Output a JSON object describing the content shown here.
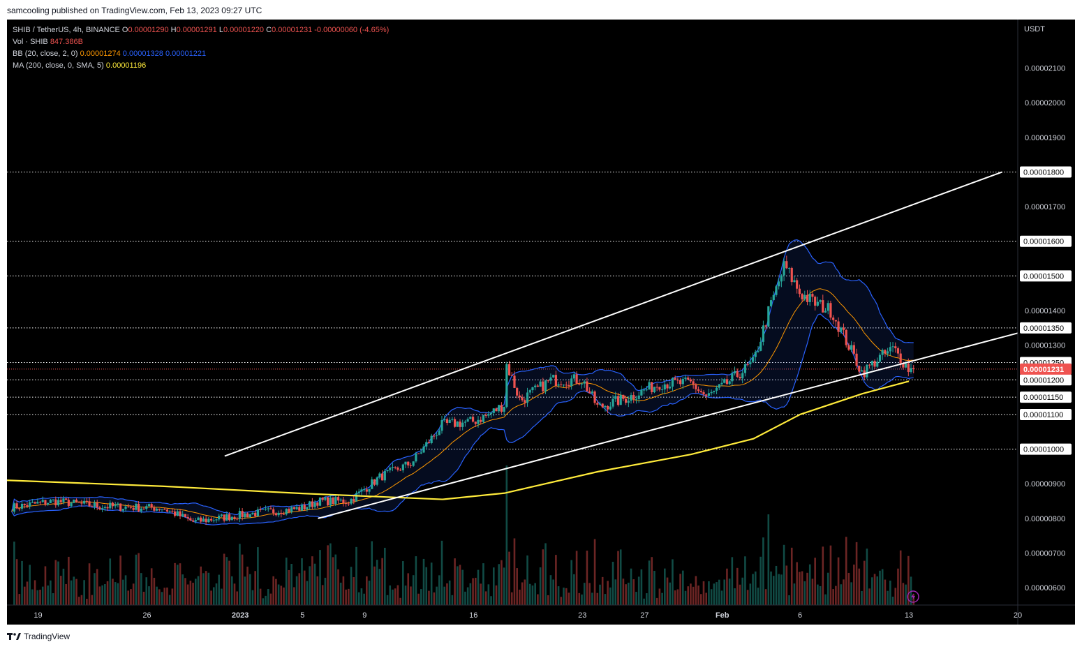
{
  "header": {
    "text": "samcooling published on TradingView.com, Feb 13, 2023 09:27 UTC"
  },
  "legend": {
    "symbol": "SHIB / TetherUS, 4h, BINANCE",
    "o_label": "O",
    "o": "0.00001290",
    "h_label": "H",
    "h": "0.00001291",
    "l_label": "L",
    "l": "0.00001220",
    "c_label": "C",
    "c": "0.00001231",
    "change": "-0.00000060 (-4.65%)",
    "vol_label": "Vol · SHIB",
    "vol": "847.386B",
    "bb_label": "BB (20, close, 2, 0)",
    "bb_basis": "0.00001274",
    "bb_upper": "0.00001328",
    "bb_lower": "0.00001221",
    "ma_label": "MA (200, close, 0, SMA, 5)",
    "ma": "0.00001196"
  },
  "footer": {
    "brand": "TradingView"
  },
  "colors": {
    "background": "#000000",
    "up": "#26a69a",
    "down": "#ef5350",
    "bb_basis": "#ff9800",
    "bb_band": "#2962ff",
    "ma": "#ffeb3b",
    "trendline": "#ffffff",
    "last_price": "#ef5350"
  },
  "chart_data": {
    "type": "candlestick",
    "y_unit": "USDT",
    "ylim": [
      5.5e-06,
      2.24e-05
    ],
    "y_ticks": [
      "0.00002100",
      "0.00002000",
      "0.00001900",
      "0.00001800",
      "0.00001700",
      "0.00001600",
      "0.00001500",
      "0.00001400",
      "0.00001350",
      "0.00001300",
      "0.00001250",
      "0.00001200",
      "0.00001150",
      "0.00001100",
      "0.00001000",
      "0.00000900",
      "0.00000800",
      "0.00000700",
      "0.00000600"
    ],
    "highlighted_levels": [
      "0.00001800",
      "0.00001600",
      "0.00001500",
      "0.00001350",
      "0.00001250",
      "0.00001200",
      "0.00001150",
      "0.00001100",
      "0.00001000"
    ],
    "last_price": "0.00001231",
    "x_ticks": [
      "19",
      "26",
      "2023",
      "5",
      "9",
      "16",
      "23",
      "27",
      "Feb",
      "6",
      "13",
      "20"
    ],
    "date_range": [
      "2022-12-17",
      "2023-02-20"
    ],
    "price_path": [
      [
        "2022-12-17",
        8.3e-06
      ],
      [
        "2022-12-20",
        8.5e-06
      ],
      [
        "2022-12-23",
        8.35e-06
      ],
      [
        "2022-12-27",
        8.3e-06
      ],
      [
        "2022-12-29",
        7.9e-06
      ],
      [
        "2023-01-01",
        8.1e-06
      ],
      [
        "2023-01-05",
        8.3e-06
      ],
      [
        "2023-01-06",
        8.5e-06
      ],
      [
        "2023-01-08",
        8.5e-06
      ],
      [
        "2023-01-10",
        9.2e-06
      ],
      [
        "2023-01-12",
        9.6e-06
      ],
      [
        "2023-01-14",
        1.07e-05
      ],
      [
        "2023-01-16",
        1.08e-05
      ],
      [
        "2023-01-17",
        1.1e-05
      ],
      [
        "2023-01-18",
        1.13e-05
      ],
      [
        "2023-01-18",
        1.26e-05
      ],
      [
        "2023-01-19",
        1.14e-05
      ],
      [
        "2023-01-21",
        1.2e-05
      ],
      [
        "2023-01-23",
        1.2e-05
      ],
      [
        "2023-01-24",
        1.12e-05
      ],
      [
        "2023-01-26",
        1.15e-05
      ],
      [
        "2023-01-28",
        1.19e-05
      ],
      [
        "2023-01-30",
        1.19e-05
      ],
      [
        "2023-01-31",
        1.15e-05
      ],
      [
        "2023-02-01",
        1.18e-05
      ],
      [
        "2023-02-03",
        1.25e-05
      ],
      [
        "2023-02-04",
        1.4e-05
      ],
      [
        "2023-02-05",
        1.53e-05
      ],
      [
        "2023-02-06",
        1.45e-05
      ],
      [
        "2023-02-07",
        1.42e-05
      ],
      [
        "2023-02-08",
        1.4e-05
      ],
      [
        "2023-02-09",
        1.31e-05
      ],
      [
        "2023-02-10",
        1.22e-05
      ],
      [
        "2023-02-11",
        1.26e-05
      ],
      [
        "2023-02-12",
        1.29e-05
      ],
      [
        "2023-02-13",
        1.231e-05
      ]
    ],
    "ma200_path": [
      [
        "2022-12-17",
        9.1e-06
      ],
      [
        "2022-12-27",
        8.93e-06
      ],
      [
        "2023-01-05",
        8.72e-06
      ],
      [
        "2023-01-14",
        8.55e-06
      ],
      [
        "2023-01-18",
        8.73e-06
      ],
      [
        "2023-01-24",
        9.35e-06
      ],
      [
        "2023-01-30",
        9.85e-06
      ],
      [
        "2023-02-03",
        1.03e-05
      ],
      [
        "2023-02-06",
        1.1e-05
      ],
      [
        "2023-02-10",
        1.16e-05
      ],
      [
        "2023-02-13",
        1.196e-05
      ]
    ],
    "trendlines": [
      {
        "name": "channel upper",
        "from": [
          "2022-12-31",
          9.8e-06
        ],
        "to": [
          "2023-02-19",
          1.8e-05
        ]
      },
      {
        "name": "channel lower",
        "from": [
          "2023-01-06",
          8e-06
        ],
        "to": [
          "2023-02-20",
          1.335e-05
        ]
      }
    ],
    "volume_max": "1.2T"
  }
}
